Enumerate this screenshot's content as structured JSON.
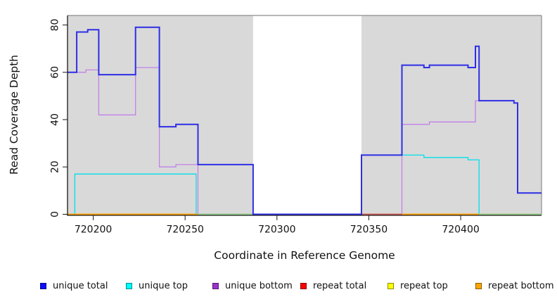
{
  "chart_data": {
    "type": "line",
    "title": "",
    "xlabel": "Coordinate in Reference Genome",
    "ylabel": "Read Coverage Depth",
    "xlim": [
      720186,
      720444
    ],
    "ylim": [
      0,
      84
    ],
    "x_ticks": [
      720200,
      720250,
      720300,
      720350,
      720400
    ],
    "y_ticks": [
      0,
      20,
      40,
      60,
      80
    ],
    "grid": false,
    "legend_position": "bottom",
    "panel_background_regions": [
      [
        720186,
        720287
      ],
      [
        720346,
        720444
      ]
    ],
    "mask_region_white": [
      720287,
      720346
    ],
    "series": [
      {
        "name": "unique total",
        "color": "#2e2ee6",
        "width": 2,
        "steps": [
          [
            720186,
            60
          ],
          [
            720191,
            77
          ],
          [
            720197,
            78
          ],
          [
            720203,
            59
          ],
          [
            720223,
            79
          ],
          [
            720236,
            37
          ],
          [
            720245,
            38
          ],
          [
            720257,
            21
          ],
          [
            720287,
            0
          ],
          [
            720346,
            25
          ],
          [
            720368,
            63
          ],
          [
            720380,
            62
          ],
          [
            720383,
            63
          ],
          [
            720404,
            62
          ],
          [
            720408,
            71
          ],
          [
            720410,
            48
          ],
          [
            720429,
            47
          ],
          [
            720431,
            9
          ]
        ]
      },
      {
        "name": "unique top",
        "color": "#00e0e8",
        "width": 1.3,
        "steps": [
          [
            720186,
            0
          ],
          [
            720190,
            17
          ],
          [
            720256,
            0
          ],
          [
            720346,
            25
          ],
          [
            720380,
            24
          ],
          [
            720404,
            23
          ],
          [
            720410,
            0
          ]
        ]
      },
      {
        "name": "unique bottom",
        "color": "#c182e8",
        "width": 1.3,
        "steps": [
          [
            720186,
            60
          ],
          [
            720196,
            61
          ],
          [
            720203,
            42
          ],
          [
            720223,
            62
          ],
          [
            720236,
            20
          ],
          [
            720245,
            21
          ],
          [
            720257,
            0
          ],
          [
            720368,
            38
          ],
          [
            720383,
            39
          ],
          [
            720408,
            48
          ],
          [
            720429,
            47
          ],
          [
            720431,
            9
          ]
        ]
      },
      {
        "name": "repeat total",
        "color": "#c85062",
        "width": 1.5,
        "steps": [
          [
            720186,
            0
          ]
        ]
      },
      {
        "name": "repeat top",
        "color": "#f0f000",
        "width": 1.5,
        "steps": [
          [
            720186,
            0
          ]
        ]
      },
      {
        "name": "repeat bottom",
        "color": "#ff9d00",
        "width": 1.5,
        "steps": [
          [
            720186,
            0
          ]
        ]
      }
    ],
    "baseline_visible_segments": [
      {
        "from": 720186,
        "to": 720257,
        "color": "#ff9d00",
        "name": "repeat-bottom-zero"
      },
      {
        "from": 720257,
        "to": 720287,
        "color": "#8fd48f",
        "name": "overlap-green-zero"
      },
      {
        "from": 720346,
        "to": 720368,
        "color": "#c85062",
        "name": "repeat-total-zero"
      },
      {
        "from": 720368,
        "to": 720410,
        "color": "#ff9d00",
        "name": "repeat-bottom-zero"
      },
      {
        "from": 720410,
        "to": 720444,
        "color": "#8fd48f",
        "name": "overlap-green-zero"
      }
    ],
    "legend": [
      {
        "label": "unique total",
        "color": "#0d0dff"
      },
      {
        "label": "unique top",
        "color": "#00ffff"
      },
      {
        "label": "unique bottom",
        "color": "#9932cc"
      },
      {
        "label": "repeat total",
        "color": "#ff0000"
      },
      {
        "label": "repeat top",
        "color": "#ffff00"
      },
      {
        "label": "repeat bottom",
        "color": "#ffa500"
      }
    ],
    "colors": {
      "panel": "#d9d9d9",
      "box_border": "#8c8c8c",
      "axis": "#1a1a1a",
      "tick_text": "#111111"
    }
  }
}
